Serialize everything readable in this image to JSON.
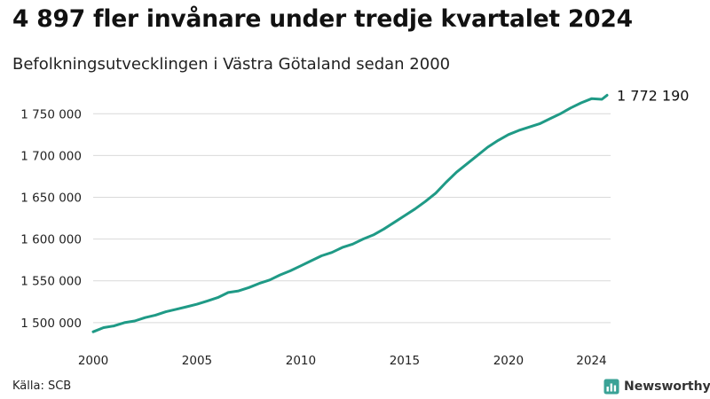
{
  "title": "4 897 fler invånare under tredje kvartalet 2024",
  "subtitle": "Befolkningsutvecklingen i Västra Götaland sedan 2000",
  "source": "Källa: SCB",
  "brand": {
    "name": "Newsworthy",
    "icon": "newsworthy-logo-icon",
    "color": "#3aa296"
  },
  "colors": {
    "line": "#1f9a86",
    "grid": "#d9d9d9",
    "text": "#222222"
  },
  "chart_data": {
    "type": "line",
    "title": "4 897 fler invånare under tredje kvartalet 2024",
    "subtitle": "Befolkningsutvecklingen i Västra Götaland sedan 2000",
    "xlabel": "",
    "ylabel": "",
    "xlim": [
      2000,
      2024.75
    ],
    "ylim": [
      1485000,
      1780000
    ],
    "x_ticks": [
      2000,
      2005,
      2010,
      2015,
      2020,
      2024
    ],
    "x_tick_labels": [
      "2000",
      "2005",
      "2010",
      "2015",
      "2020",
      "2024"
    ],
    "y_ticks": [
      1500000,
      1550000,
      1600000,
      1650000,
      1700000,
      1750000
    ],
    "y_tick_labels": [
      "1 500 000",
      "1 550 000",
      "1 600 000",
      "1 650 000",
      "1 700 000",
      "1 750 000"
    ],
    "grid": "horizontal",
    "legend": "none",
    "end_label": "1 772 190",
    "series": [
      {
        "color": "#1f9a86",
        "x": [
          2000,
          2000.5,
          2001,
          2001.5,
          2002,
          2002.5,
          2003,
          2003.5,
          2004,
          2004.5,
          2005,
          2005.5,
          2006,
          2006.5,
          2007,
          2007.5,
          2008,
          2008.5,
          2009,
          2009.5,
          2010,
          2010.5,
          2011,
          2011.5,
          2012,
          2012.5,
          2013,
          2013.5,
          2014,
          2014.5,
          2015,
          2015.5,
          2016,
          2016.5,
          2017,
          2017.5,
          2018,
          2018.5,
          2019,
          2019.5,
          2020,
          2020.5,
          2021,
          2021.5,
          2022,
          2022.5,
          2023,
          2023.5,
          2024,
          2024.5,
          2024.75
        ],
        "values": [
          1489000,
          1494000,
          1496000,
          1500000,
          1502000,
          1506000,
          1509000,
          1513000,
          1516000,
          1519000,
          1522000,
          1526000,
          1530000,
          1536000,
          1538000,
          1542000,
          1547000,
          1551000,
          1557000,
          1562000,
          1568000,
          1574000,
          1580000,
          1584000,
          1590000,
          1594000,
          1600000,
          1605000,
          1612000,
          1620000,
          1628000,
          1636000,
          1645000,
          1655000,
          1668000,
          1680000,
          1690000,
          1700000,
          1710000,
          1718000,
          1725000,
          1730000,
          1734000,
          1738000,
          1744000,
          1750000,
          1757000,
          1763000,
          1768000,
          1767300,
          1772190
        ]
      }
    ]
  }
}
